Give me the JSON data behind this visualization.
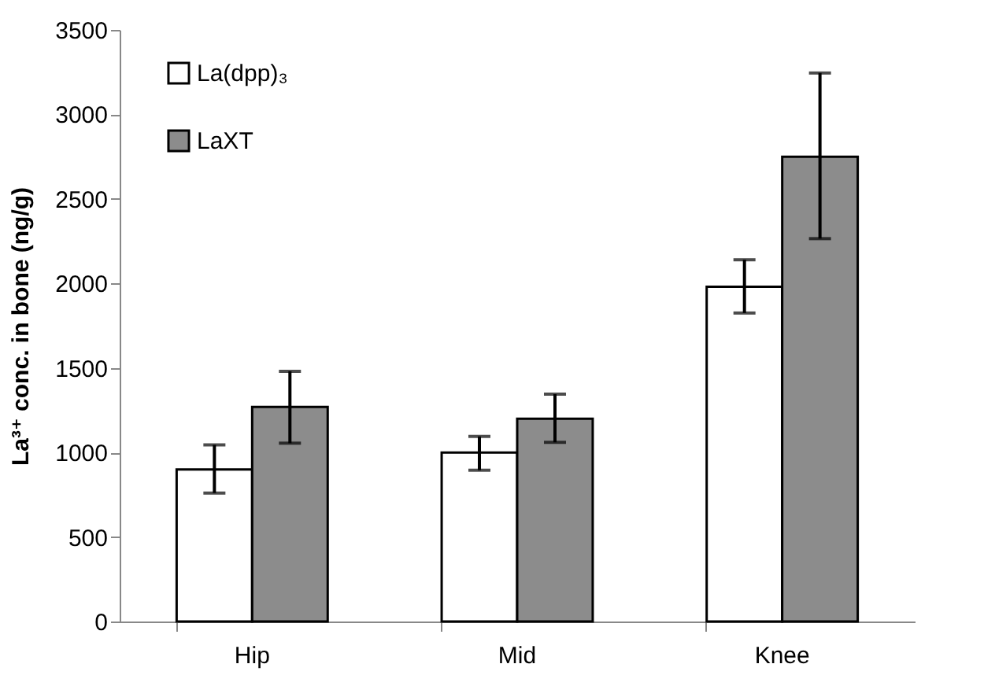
{
  "chart_data": {
    "type": "bar",
    "ylabel": "La³⁺  conc. in bone (ng/g)",
    "categories": [
      "Hip",
      "Mid",
      "Knee"
    ],
    "series": [
      {
        "name": "La(dpp)₃",
        "color": "#ffffff",
        "values": [
          900,
          1000,
          1980
        ],
        "errors": [
          [
            760,
            1045
          ],
          [
            895,
            1095
          ],
          [
            1825,
            2140
          ]
        ]
      },
      {
        "name": "LaXT",
        "color": "#8c8c8c",
        "values": [
          1270,
          1200,
          2750
        ],
        "errors": [
          [
            1055,
            1480
          ],
          [
            1060,
            1345
          ],
          [
            2265,
            3245
          ]
        ]
      }
    ],
    "ylim": [
      0,
      3500
    ],
    "yticks": [
      0,
      500,
      1000,
      1500,
      2000,
      2500,
      3000,
      3500
    ],
    "grid": false,
    "legend": "top left"
  }
}
